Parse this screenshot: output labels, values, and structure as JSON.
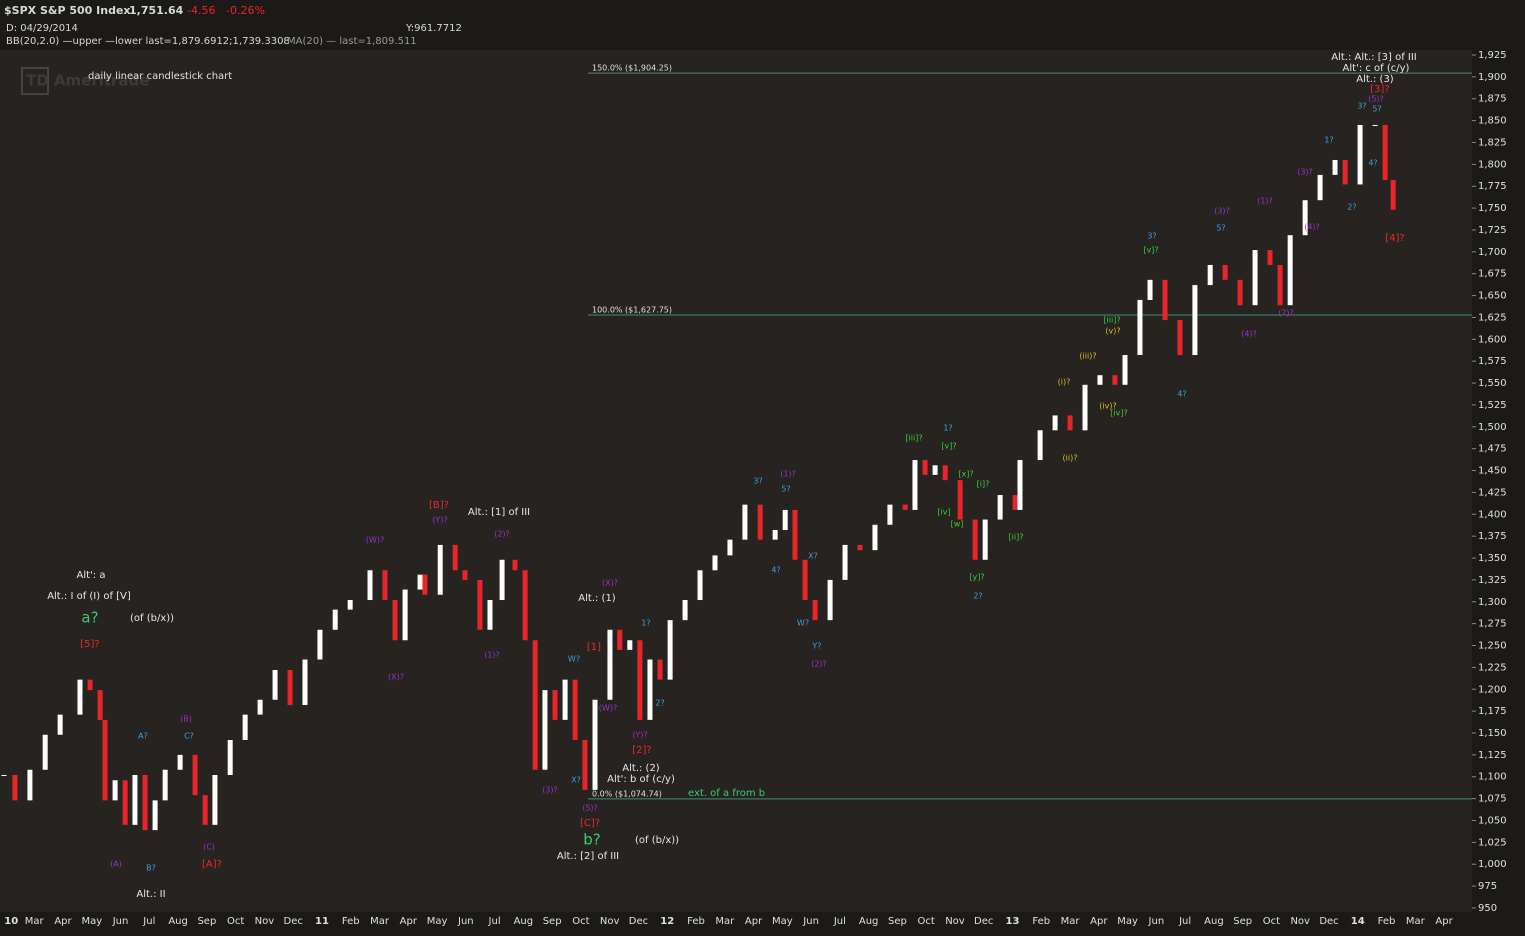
{
  "header": {
    "symbol": "$SPX S&P 500 Index",
    "last": "1,751.64",
    "change": "-4.56",
    "change_pct": "-0.26%",
    "date": "D: 04/29/2014",
    "y_readout": "Y:961.7712",
    "bb": "BB(20,2.0) —upper —lower last=1,879.6912;1,739.3308",
    "ma": "MA(20) — last=1,809.511",
    "watermark": "TD Ameritrade"
  },
  "chart_data": {
    "type": "candlestick",
    "subtitle": "daily linear candlestick chart",
    "up_color": "#ffffff",
    "down_color": "#e8262a",
    "background": "#262320",
    "line_color": "#3f8f7a",
    "xlim": [
      -1.19,
      49.97
    ],
    "ylim": [
      945.4,
      1930.7
    ],
    "xticks": [
      {
        "value": -0.8,
        "label": "10"
      },
      {
        "value": 0,
        "label": "Mar"
      },
      {
        "value": 1,
        "label": "Apr"
      },
      {
        "value": 2,
        "label": "May"
      },
      {
        "value": 3,
        "label": "Jun"
      },
      {
        "value": 4,
        "label": "Jul"
      },
      {
        "value": 5,
        "label": "Aug"
      },
      {
        "value": 6,
        "label": "Sep"
      },
      {
        "value": 7,
        "label": "Oct"
      },
      {
        "value": 8,
        "label": "Nov"
      },
      {
        "value": 9,
        "label": "Dec"
      },
      {
        "value": 10,
        "label": "11"
      },
      {
        "value": 11,
        "label": "Feb"
      },
      {
        "value": 12,
        "label": "Mar"
      },
      {
        "value": 13,
        "label": "Apr"
      },
      {
        "value": 14,
        "label": "May"
      },
      {
        "value": 15,
        "label": "Jun"
      },
      {
        "value": 16,
        "label": "Jul"
      },
      {
        "value": 17,
        "label": "Aug"
      },
      {
        "value": 18,
        "label": "Sep"
      },
      {
        "value": 19,
        "label": "Oct"
      },
      {
        "value": 20,
        "label": "Nov"
      },
      {
        "value": 21,
        "label": "Dec"
      },
      {
        "value": 22,
        "label": "12"
      },
      {
        "value": 23,
        "label": "Feb"
      },
      {
        "value": 24,
        "label": "Mar"
      },
      {
        "value": 25,
        "label": "Apr"
      },
      {
        "value": 26,
        "label": "May"
      },
      {
        "value": 27,
        "label": "Jun"
      },
      {
        "value": 28,
        "label": "Jul"
      },
      {
        "value": 29,
        "label": "Aug"
      },
      {
        "value": 30,
        "label": "Sep"
      },
      {
        "value": 31,
        "label": "Oct"
      },
      {
        "value": 32,
        "label": "Nov"
      },
      {
        "value": 33,
        "label": "Dec"
      },
      {
        "value": 34,
        "label": "13"
      },
      {
        "value": 35,
        "label": "Feb"
      },
      {
        "value": 36,
        "label": "Mar"
      },
      {
        "value": 37,
        "label": "Apr"
      },
      {
        "value": 38,
        "label": "May"
      },
      {
        "value": 39,
        "label": "Jun"
      },
      {
        "value": 40,
        "label": "Jul"
      },
      {
        "value": 41,
        "label": "Aug"
      },
      {
        "value": 42,
        "label": "Sep"
      },
      {
        "value": 43,
        "label": "Oct"
      },
      {
        "value": 44,
        "label": "Nov"
      },
      {
        "value": 45,
        "label": "Dec"
      },
      {
        "value": 46,
        "label": "14"
      },
      {
        "value": 47,
        "label": "Feb"
      },
      {
        "value": 48,
        "label": "Mar"
      },
      {
        "value": 49,
        "label": "Apr"
      }
    ],
    "yticks": [
      950,
      975,
      {
        "value": 1000,
        "label": "1,000"
      },
      {
        "value": 1025,
        "label": "1,025"
      },
      {
        "value": 1050,
        "label": "1,050"
      },
      {
        "value": 1075,
        "label": "1,075"
      },
      {
        "value": 1100,
        "label": "1,100"
      },
      {
        "value": 1125,
        "label": "1,125"
      },
      {
        "value": 1150,
        "label": "1,150"
      },
      {
        "value": 1175,
        "label": "1,175"
      },
      {
        "value": 1200,
        "label": "1,200"
      },
      {
        "value": 1225,
        "label": "1,225"
      },
      {
        "value": 1250,
        "label": "1,250"
      },
      {
        "value": 1275,
        "label": "1,275"
      },
      {
        "value": 1300,
        "label": "1,300"
      },
      {
        "value": 1325,
        "label": "1,325"
      },
      {
        "value": 1350,
        "label": "1,350"
      },
      {
        "value": 1375,
        "label": "1,375"
      },
      {
        "value": 1400,
        "label": "1,400"
      },
      {
        "value": 1425,
        "label": "1,425"
      },
      {
        "value": 1450,
        "label": "1,450"
      },
      {
        "value": 1475,
        "label": "1,475"
      },
      {
        "value": 1500,
        "label": "1,500"
      },
      {
        "value": 1525,
        "label": "1,525"
      },
      {
        "value": 1550,
        "label": "1,550"
      },
      {
        "value": 1575,
        "label": "1,575"
      },
      {
        "value": 1600,
        "label": "1,600"
      },
      {
        "value": 1625,
        "label": "1,625"
      },
      {
        "value": 1650,
        "label": "1,650"
      },
      {
        "value": 1675,
        "label": "1,675"
      },
      {
        "value": 1700,
        "label": "1,700"
      },
      {
        "value": 1725,
        "label": "1,725"
      },
      {
        "value": 1750,
        "label": "1,750"
      },
      {
        "value": 1775,
        "label": "1,775"
      },
      {
        "value": 1800,
        "label": "1,800"
      },
      {
        "value": 1825,
        "label": "1,825"
      },
      {
        "value": 1850,
        "label": "1,850"
      },
      {
        "value": 1875,
        "label": "1,875"
      },
      {
        "value": 1900,
        "label": "1,900"
      },
      {
        "value": 1925,
        "label": "1,925"
      }
    ],
    "x": [
      -1.05,
      -0.67,
      -0.15,
      0.38,
      0.9,
      1.59,
      1.94,
      2.29,
      2.46,
      2.81,
      3.16,
      3.5,
      3.85,
      4.2,
      4.55,
      5.07,
      5.59,
      5.94,
      6.28,
      6.81,
      7.33,
      7.85,
      8.37,
      8.89,
      9.41,
      9.93,
      10.46,
      10.98,
      11.67,
      12.19,
      12.54,
      12.89,
      13.41,
      13.58,
      14.11,
      14.63,
      14.97,
      15.49,
      15.84,
      16.26,
      16.71,
      17.06,
      17.41,
      17.75,
      18.1,
      18.45,
      18.8,
      19.14,
      19.49,
      20.01,
      20.35,
      20.7,
      21.05,
      21.4,
      21.75,
      22.1,
      22.62,
      23.14,
      23.66,
      24.18,
      24.7,
      25.23,
      25.75,
      26.1,
      26.44,
      26.79,
      27.14,
      27.66,
      28.18,
      28.7,
      29.22,
      29.74,
      30.27,
      30.61,
      30.96,
      31.31,
      31.66,
      32.18,
      32.7,
      33.05,
      33.57,
      34.09,
      34.26,
      34.96,
      35.48,
      36.0,
      36.52,
      37.04,
      37.56,
      37.91,
      38.43,
      38.78,
      39.3,
      39.82,
      40.34,
      40.87,
      41.39,
      41.91,
      42.43,
      42.95,
      43.3,
      43.65,
      44.17,
      44.69,
      45.21,
      45.56,
      46.08,
      46.6,
      46.95,
      47.23
    ],
    "values": [
      1102,
      1073,
      1108,
      1148,
      1171,
      1211,
      1199,
      1165,
      1073,
      1096,
      1045,
      1102,
      1039,
      1073,
      1108,
      1125,
      1079,
      1045,
      1102,
      1142,
      1171,
      1188,
      1222,
      1182,
      1234,
      1268,
      1291,
      1302,
      1336,
      1302,
      1256,
      1314,
      1331,
      1308,
      1365,
      1336,
      1325,
      1268,
      1302,
      1348,
      1336,
      1256,
      1108,
      1199,
      1165,
      1211,
      1142,
      1085,
      1188,
      1268,
      1245,
      1256,
      1165,
      1234,
      1211,
      1279,
      1302,
      1336,
      1353,
      1371,
      1411,
      1371,
      1382,
      1405,
      1348,
      1302,
      1279,
      1325,
      1365,
      1359,
      1388,
      1411,
      1405,
      1462,
      1445,
      1456,
      1439,
      1394,
      1348,
      1394,
      1422,
      1405,
      1462,
      1496,
      1513,
      1496,
      1548,
      1559,
      1548,
      1582,
      1645,
      1668,
      1622,
      1582,
      1662,
      1685,
      1668,
      1639,
      1702,
      1685,
      1639,
      1719,
      1759,
      1788,
      1805,
      1777,
      1845,
      1845,
      1782,
      1748
    ],
    "levels": [
      {
        "value": 1904.25,
        "label": "150.0%  ($1,904.25)"
      },
      {
        "value": 1627.75,
        "label": "100.0%  ($1,627.75)"
      },
      {
        "value": 1074.74,
        "label": "0.0%  ($1,074.74)"
      }
    ],
    "level_note": "ext. of a from b",
    "annotations": [
      {
        "text": "Alt': a",
        "color": "#e8e8e8"
      },
      {
        "text": "Alt.: I of (I) of [V]",
        "color": "#e8e8e8"
      },
      {
        "text": "a?",
        "color": "#3ccc6c"
      },
      {
        "text": "(of (b/x))",
        "color": "#e8e8e8"
      },
      {
        "text": "[5]?",
        "color": "#e82a2a"
      },
      {
        "text": "(A)",
        "color": "#9a32c8"
      },
      {
        "text": "B?",
        "color": "#3aa0e0"
      },
      {
        "text": "[A]?",
        "color": "#e82a2a"
      },
      {
        "text": "Alt.: II",
        "color": "#e8e8e8"
      },
      {
        "text": "(C)",
        "color": "#9a32c8"
      },
      {
        "text": "(B)",
        "color": "#9a32c8"
      },
      {
        "text": "C?",
        "color": "#3aa0e0"
      },
      {
        "text": "A?",
        "color": "#3aa0e0"
      },
      {
        "text": "[B]?",
        "color": "#e82a2a"
      },
      {
        "text": "(Y)?",
        "color": "#9a32c8"
      },
      {
        "text": "Alt.: [1] of III",
        "color": "#e8e8e8"
      },
      {
        "text": "(W)?",
        "color": "#9a32c8"
      },
      {
        "text": "(2)?",
        "color": "#9a32c8"
      },
      {
        "text": "(X)?",
        "color": "#9a32c8"
      },
      {
        "text": "(1)?",
        "color": "#9a32c8"
      },
      {
        "text": "Alt.: (1)",
        "color": "#e8e8e8"
      },
      {
        "text": "(X)?",
        "color": "#9a32c8"
      },
      {
        "text": "[1]",
        "color": "#e82a2a"
      },
      {
        "text": "W?",
        "color": "#3aa0e0"
      },
      {
        "text": "(W)?",
        "color": "#9a32c8"
      },
      {
        "text": "(Y)?",
        "color": "#9a32c8"
      },
      {
        "text": "[2]?",
        "color": "#e82a2a"
      },
      {
        "text": "Alt.: (2)",
        "color": "#e8e8e8"
      },
      {
        "text": "Alt': b of (c/y)",
        "color": "#e8e8e8"
      },
      {
        "text": "(3)?",
        "color": "#9a32c8"
      },
      {
        "text": "X?",
        "color": "#3aa0e0"
      },
      {
        "text": "(5)?",
        "color": "#9a32c8"
      },
      {
        "text": "[C]?",
        "color": "#e82a2a"
      },
      {
        "text": "b?",
        "color": "#3ccc6c"
      },
      {
        "text": "(of (b/x))",
        "color": "#e8e8e8"
      },
      {
        "text": "Alt.: [2] of III",
        "color": "#e8e8e8"
      },
      {
        "text": "1?",
        "color": "#3aa0e0"
      },
      {
        "text": "2?",
        "color": "#3aa0e0"
      },
      {
        "text": "3?",
        "color": "#3aa0e0"
      },
      {
        "text": "(1)?",
        "color": "#9a32c8"
      },
      {
        "text": "5?",
        "color": "#3aa0e0"
      },
      {
        "text": "4?",
        "color": "#3aa0e0"
      },
      {
        "text": "W?",
        "color": "#3aa0e0"
      },
      {
        "text": "Y?",
        "color": "#3aa0e0"
      },
      {
        "text": "(2)?",
        "color": "#9a32c8"
      },
      {
        "text": "X?",
        "color": "#3aa0e0"
      },
      {
        "text": "[iii]?",
        "color": "#3ccc3c"
      },
      {
        "text": "1?",
        "color": "#3aa0e0"
      },
      {
        "text": "[v]?",
        "color": "#3ccc3c"
      },
      {
        "text": "[x]?",
        "color": "#3ccc3c"
      },
      {
        "text": "[i]?",
        "color": "#3ccc3c"
      },
      {
        "text": "[iv]",
        "color": "#3ccc3c"
      },
      {
        "text": "[w]",
        "color": "#3ccc3c"
      },
      {
        "text": "[y]?",
        "color": "#3ccc3c"
      },
      {
        "text": "2?",
        "color": "#3aa0e0"
      },
      {
        "text": "[ii]?",
        "color": "#3ccc3c"
      },
      {
        "text": "(i)?",
        "color": "#d4c020"
      },
      {
        "text": "(iii)?",
        "color": "#d4c020"
      },
      {
        "text": "(ii)?",
        "color": "#d4c020"
      },
      {
        "text": "(iv)?",
        "color": "#d4c020"
      },
      {
        "text": "[iv]?",
        "color": "#3ccc3c"
      },
      {
        "text": "(v)?",
        "color": "#d4c020"
      },
      {
        "text": "[iii]?",
        "color": "#3ccc3c"
      },
      {
        "text": "3?",
        "color": "#3aa0e0"
      },
      {
        "text": "[v]?",
        "color": "#3ccc3c"
      },
      {
        "text": "4?",
        "color": "#3aa0e0"
      },
      {
        "text": "(3)?",
        "color": "#9a32c8"
      },
      {
        "text": "5?",
        "color": "#3aa0e0"
      },
      {
        "text": "(4)?",
        "color": "#9a32c8"
      },
      {
        "text": "(2)?",
        "color": "#9a32c8"
      },
      {
        "text": "(1)?",
        "color": "#9a32c8"
      },
      {
        "text": "(4)?",
        "color": "#9a32c8"
      },
      {
        "text": "(3)?",
        "color": "#9a32c8"
      },
      {
        "text": "1?",
        "color": "#3aa0e0"
      },
      {
        "text": "2?",
        "color": "#3aa0e0"
      },
      {
        "text": "3?",
        "color": "#3aa0e0"
      },
      {
        "text": "4?",
        "color": "#3aa0e0"
      },
      {
        "text": "5?",
        "color": "#3aa0e0"
      },
      {
        "text": "(5)?",
        "color": "#9a32c8"
      },
      {
        "text": "[3]?",
        "color": "#e82a2a"
      },
      {
        "text": "[4]?",
        "color": "#e82a2a"
      },
      {
        "text": "Alt.: Alt.: [3] of III",
        "color": "#e8e8e8"
      },
      {
        "text": "Alt': c of (c/y)",
        "color": "#e8e8e8"
      },
      {
        "text": "Alt.: (3)",
        "color": "#e8e8e8"
      }
    ]
  }
}
